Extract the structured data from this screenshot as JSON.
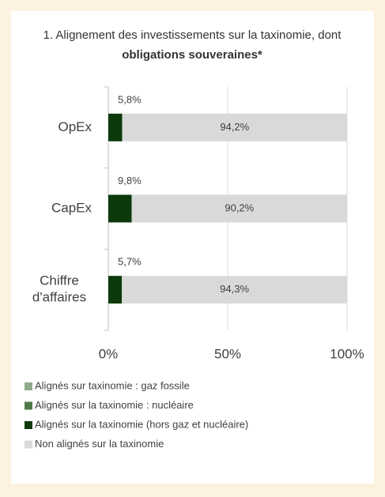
{
  "chart_data": {
    "type": "stacked_barh",
    "title": {
      "text": "1. Alignement des investissements sur la taxinomie, dont",
      "bold": "obligations souveraines*"
    },
    "categories": [
      "OpEx",
      "CapEx",
      "Chiffre d'affaires"
    ],
    "series": [
      {
        "name": "Alignés sur taxinomie : gaz fossile",
        "color": "#8faa8b",
        "values": [
          0,
          0,
          0
        ]
      },
      {
        "name": "Alignés sur la taxinomie : nucléaire",
        "color": "#4f7a4b",
        "values": [
          0,
          0,
          0
        ]
      },
      {
        "name": "Alignés sur la taxinomie (hors gaz et nucléaire)",
        "color": "#0c3a0c",
        "values": [
          5.8,
          9.8,
          5.7
        ],
        "value_labels": [
          "5,8%",
          "9,8%",
          "5,7%"
        ]
      },
      {
        "name": "Non alignés sur la taxinomie",
        "color": "#d9d9d9",
        "values": [
          94.2,
          90.2,
          94.3
        ],
        "value_labels": [
          "94,2%",
          "90,2%",
          "94,3%"
        ]
      }
    ],
    "xlim": [
      0,
      100
    ],
    "xticks": [
      {
        "value": 0,
        "label": "0%"
      },
      {
        "value": 50,
        "label": "50%"
      },
      {
        "value": 100,
        "label": "100%"
      }
    ],
    "grid": true
  }
}
